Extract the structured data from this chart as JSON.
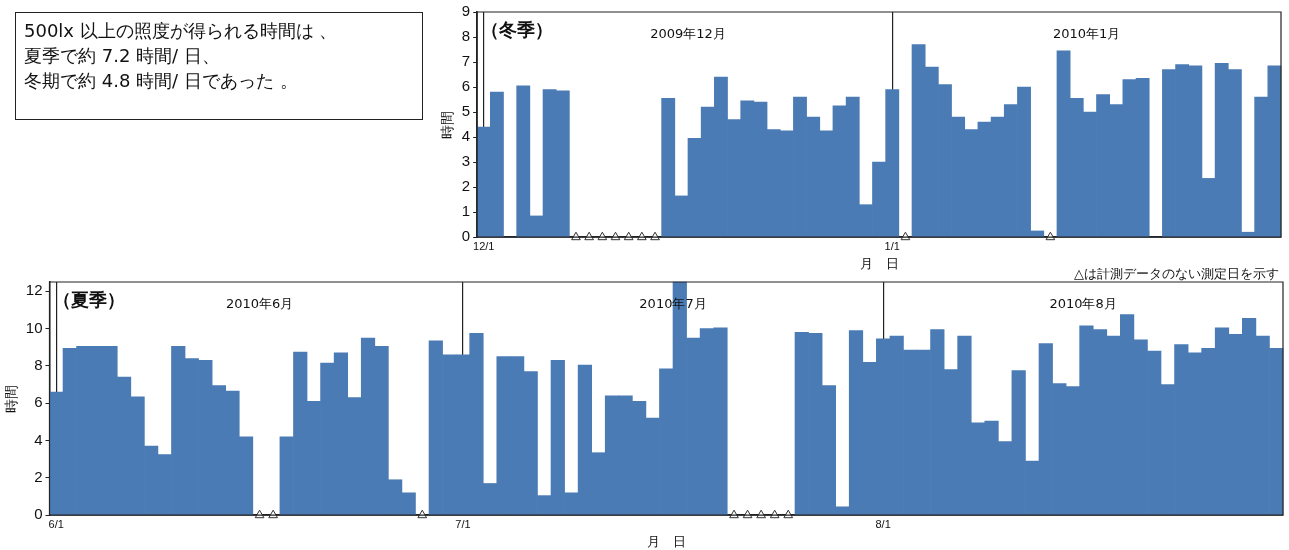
{
  "chart_data": [
    {
      "type": "other",
      "annotations": [
        "500lx 以上の照度が得られる時間は 、",
        "夏季で約 7.2 時間/ 日、",
        "冬期で約 4.8 時間/ 日であった 。"
      ]
    },
    {
      "type": "bar",
      "title": "（冬季）",
      "xlabel": "月　日",
      "ylabel": "時間",
      "grid": "x",
      "xlim": [
        "2009-11-30T12:00",
        "2010-01-30T12:00"
      ],
      "xticks": [
        {
          "value": "2009-12-01",
          "label": "12/1"
        },
        {
          "value": "2010-01-01",
          "label": "1/1"
        }
      ],
      "ylim": [
        0,
        9
      ],
      "yticks": [
        0,
        1,
        2,
        3,
        4,
        5,
        6,
        7,
        8,
        9
      ],
      "x": [
        "2009-12-01",
        "2009-12-02",
        "2009-12-03",
        "2009-12-04",
        "2009-12-05",
        "2009-12-06",
        "2009-12-07",
        "2009-12-08",
        "2009-12-09",
        "2009-12-10",
        "2009-12-11",
        "2009-12-12",
        "2009-12-13",
        "2009-12-14",
        "2009-12-15",
        "2009-12-16",
        "2009-12-17",
        "2009-12-18",
        "2009-12-19",
        "2009-12-20",
        "2009-12-21",
        "2009-12-22",
        "2009-12-23",
        "2009-12-24",
        "2009-12-25",
        "2009-12-26",
        "2009-12-27",
        "2009-12-28",
        "2009-12-29",
        "2009-12-30",
        "2009-12-31",
        "2010-01-01",
        "2010-01-02",
        "2010-01-03",
        "2010-01-04",
        "2010-01-05",
        "2010-01-06",
        "2010-01-07",
        "2010-01-08",
        "2010-01-09",
        "2010-01-10",
        "2010-01-11",
        "2010-01-12",
        "2010-01-13",
        "2010-01-14",
        "2010-01-15",
        "2010-01-16",
        "2010-01-17",
        "2010-01-18",
        "2010-01-19",
        "2010-01-20",
        "2010-01-21",
        "2010-01-22",
        "2010-01-23",
        "2010-01-24",
        "2010-01-25",
        "2010-01-26",
        "2010-01-27",
        "2010-01-28",
        "2010-01-29",
        "2010-01-30"
      ],
      "series": [
        {
          "color": "#4a7bb4",
          "values": [
            4.4,
            5.8,
            0,
            6.05,
            0.85,
            5.9,
            5.85,
            null,
            null,
            null,
            null,
            null,
            null,
            null,
            5.55,
            1.65,
            3.95,
            5.2,
            6.4,
            4.7,
            5.45,
            5.4,
            4.3,
            4.25,
            5.6,
            4.8,
            4.25,
            5.25,
            5.6,
            1.3,
            3.0,
            5.9,
            null,
            7.7,
            6.8,
            6.1,
            4.8,
            4.3,
            4.6,
            4.8,
            5.3,
            6.0,
            0.25,
            null,
            7.45,
            5.55,
            5.0,
            5.7,
            5.3,
            6.3,
            6.35,
            0,
            6.7,
            6.9,
            6.85,
            2.35,
            6.95,
            6.7,
            0.2,
            5.6,
            6.85
          ]
        },
        {
          "type": "scatter",
          "marker": "triangle",
          "color": "#333333",
          "x": [
            "2009-12-08",
            "2009-12-09",
            "2009-12-10",
            "2009-12-11",
            "2009-12-12",
            "2009-12-13",
            "2009-12-14",
            "2010-01-02",
            "2010-01-13"
          ],
          "values": [
            0,
            0,
            0,
            0,
            0,
            0,
            0,
            0,
            0
          ]
        }
      ],
      "annotations": [
        "2009年12月",
        "2010年1月"
      ]
    },
    {
      "type": "bar",
      "title": "（夏季）",
      "xlabel": "月　日",
      "ylabel": "時間",
      "grid": "x",
      "xlim": [
        "2010-05-31T12:00",
        "2010-08-30T12:00"
      ],
      "xticks": [
        {
          "value": "2010-06-01",
          "label": "6/1"
        },
        {
          "value": "2010-07-01",
          "label": "7/1"
        },
        {
          "value": "2010-08-01",
          "label": "8/1"
        }
      ],
      "ylim": [
        0,
        12.5
      ],
      "yticks": [
        0,
        2,
        4,
        6,
        8,
        10,
        12
      ],
      "x": [
        "2010-06-01",
        "2010-06-02",
        "2010-06-03",
        "2010-06-04",
        "2010-06-05",
        "2010-06-06",
        "2010-06-07",
        "2010-06-08",
        "2010-06-09",
        "2010-06-10",
        "2010-06-11",
        "2010-06-12",
        "2010-06-13",
        "2010-06-14",
        "2010-06-15",
        "2010-06-16",
        "2010-06-17",
        "2010-06-18",
        "2010-06-19",
        "2010-06-20",
        "2010-06-21",
        "2010-06-22",
        "2010-06-23",
        "2010-06-24",
        "2010-06-25",
        "2010-06-26",
        "2010-06-27",
        "2010-06-28",
        "2010-06-29",
        "2010-06-30",
        "2010-07-01",
        "2010-07-02",
        "2010-07-03",
        "2010-07-04",
        "2010-07-05",
        "2010-07-06",
        "2010-07-07",
        "2010-07-08",
        "2010-07-09",
        "2010-07-10",
        "2010-07-11",
        "2010-07-12",
        "2010-07-13",
        "2010-07-14",
        "2010-07-15",
        "2010-07-16",
        "2010-07-17",
        "2010-07-18",
        "2010-07-19",
        "2010-07-20",
        "2010-07-21",
        "2010-07-22",
        "2010-07-23",
        "2010-07-24",
        "2010-07-25",
        "2010-07-26",
        "2010-07-27",
        "2010-07-28",
        "2010-07-29",
        "2010-07-30",
        "2010-07-31",
        "2010-08-01",
        "2010-08-02",
        "2010-08-03",
        "2010-08-04",
        "2010-08-05",
        "2010-08-06",
        "2010-08-07",
        "2010-08-08",
        "2010-08-09",
        "2010-08-10",
        "2010-08-11",
        "2010-08-12",
        "2010-08-13",
        "2010-08-14",
        "2010-08-15",
        "2010-08-16",
        "2010-08-17",
        "2010-08-18",
        "2010-08-19",
        "2010-08-20",
        "2010-08-21",
        "2010-08-22",
        "2010-08-23",
        "2010-08-24",
        "2010-08-25",
        "2010-08-26",
        "2010-08-27",
        "2010-08-28",
        "2010-08-29",
        "2010-08-30"
      ],
      "series": [
        {
          "color": "#4a7bb4",
          "values": [
            6.6,
            8.95,
            9.05,
            9.05,
            9.05,
            7.4,
            6.35,
            3.7,
            3.25,
            9.05,
            8.4,
            8.3,
            6.95,
            6.65,
            4.2,
            null,
            null,
            4.2,
            8.75,
            6.1,
            8.15,
            8.7,
            6.3,
            9.5,
            9.05,
            1.9,
            1.2,
            null,
            9.35,
            8.6,
            8.6,
            9.75,
            1.7,
            8.5,
            8.5,
            7.7,
            1.05,
            8.3,
            1.2,
            8.05,
            3.35,
            6.4,
            6.4,
            6.1,
            5.2,
            7.85,
            12.5,
            9.5,
            10.0,
            10.05,
            null,
            null,
            null,
            null,
            null,
            9.8,
            9.75,
            6.95,
            0.45,
            9.9,
            8.2,
            9.45,
            9.6,
            8.85,
            8.85,
            9.95,
            7.8,
            9.6,
            4.95,
            5.05,
            3.95,
            7.75,
            2.9,
            9.2,
            7.05,
            6.9,
            10.15,
            9.95,
            9.6,
            10.75,
            9.4,
            8.8,
            7.0,
            9.15,
            8.7,
            8.95,
            10.05,
            9.7,
            10.55,
            9.6,
            8.95
          ]
        },
        {
          "type": "scatter",
          "marker": "triangle",
          "color": "#333333",
          "x": [
            "2010-06-16",
            "2010-06-17",
            "2010-06-28",
            "2010-07-21",
            "2010-07-22",
            "2010-07-23",
            "2010-07-24",
            "2010-07-25"
          ],
          "values": [
            0,
            0,
            0,
            0,
            0,
            0,
            0,
            0
          ]
        }
      ],
      "annotations": [
        "2010年6月",
        "2010年7月",
        "2010年8月",
        "△は計測データのない測定日を示す"
      ]
    }
  ]
}
